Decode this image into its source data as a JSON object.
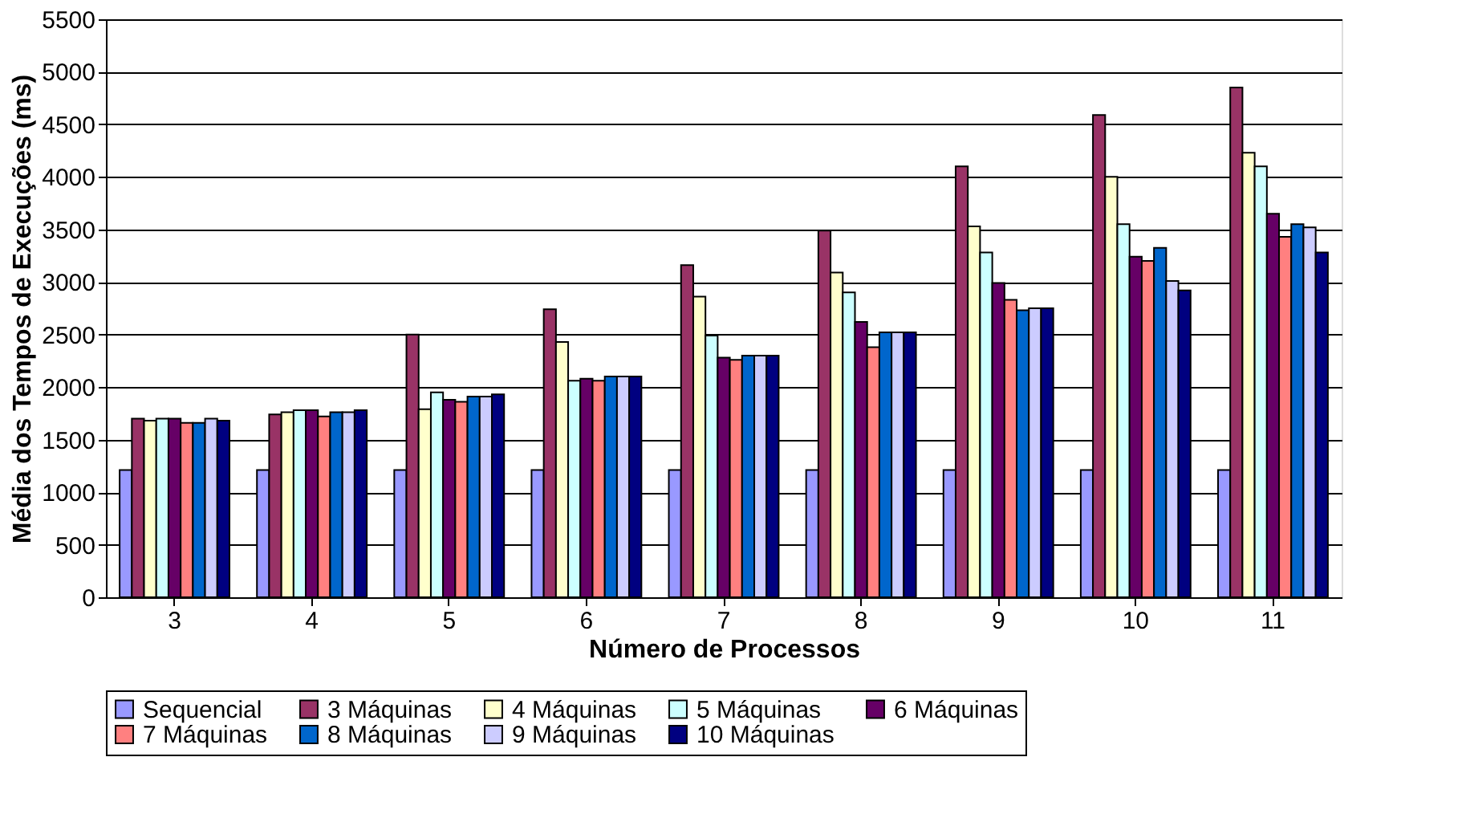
{
  "chart_data": {
    "type": "bar",
    "xlabel": "Número de Processos",
    "ylabel": "Média dos Tempos de Execuções (ms)",
    "categories": [
      "3",
      "4",
      "5",
      "6",
      "7",
      "8",
      "9",
      "10",
      "11"
    ],
    "series": [
      {
        "name": "Sequencial",
        "color": "#9999ff",
        "values": [
          1210,
          1210,
          1210,
          1210,
          1210,
          1210,
          1210,
          1210,
          1210
        ]
      },
      {
        "name": "3 Máquinas",
        "color": "#993366",
        "values": [
          1700,
          1740,
          2500,
          2740,
          3160,
          3490,
          4100,
          4590,
          4850
        ]
      },
      {
        "name": "4 Máquinas",
        "color": "#ffffcc",
        "values": [
          1680,
          1760,
          1790,
          2430,
          2860,
          3090,
          3530,
          4000,
          4230
        ]
      },
      {
        "name": "5 Máquinas",
        "color": "#ccffff",
        "values": [
          1700,
          1780,
          1950,
          2060,
          2490,
          2900,
          3280,
          3550,
          4100
        ]
      },
      {
        "name": "6 Máquinas",
        "color": "#660066",
        "values": [
          1700,
          1780,
          1880,
          2080,
          2280,
          2620,
          2990,
          3240,
          3650
        ]
      },
      {
        "name": "7 Máquinas",
        "color": "#ff8080",
        "values": [
          1660,
          1720,
          1860,
          2060,
          2260,
          2380,
          2830,
          3200,
          3430
        ]
      },
      {
        "name": "8 Máquinas",
        "color": "#0066cc",
        "values": [
          1660,
          1760,
          1910,
          2100,
          2300,
          2520,
          2730,
          3325,
          3550
        ]
      },
      {
        "name": "9 Máquinas",
        "color": "#ccccff",
        "values": [
          1700,
          1760,
          1910,
          2100,
          2300,
          2520,
          2750,
          3010,
          3520
        ]
      },
      {
        "name": "10 Máquinas",
        "color": "#000080",
        "values": [
          1680,
          1780,
          1930,
          2100,
          2300,
          2520,
          2750,
          2920,
          3280
        ]
      }
    ],
    "ylim": [
      0,
      5500
    ],
    "yticks": [
      0,
      500,
      1000,
      1500,
      2000,
      2500,
      3000,
      3500,
      4000,
      4500,
      5000,
      5500
    ],
    "grid": "y",
    "legend": "bottom"
  }
}
